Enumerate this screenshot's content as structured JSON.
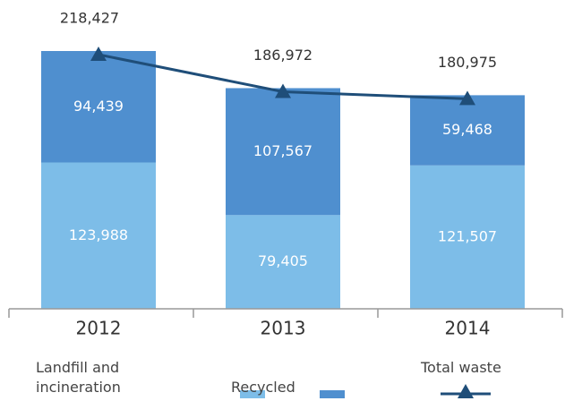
{
  "chart_data": {
    "type": "bar",
    "stacked": true,
    "legend": "bottom",
    "categories": [
      "2012",
      "2013",
      "2014"
    ],
    "series": [
      {
        "name": "Landfill and incineration",
        "color": "#7dbde8",
        "values": [
          123988,
          79405,
          121507
        ],
        "value_labels": [
          "123,988",
          "79,405",
          "121,507"
        ]
      },
      {
        "name": "Recycled",
        "color": "#4f8fcf",
        "values": [
          94439,
          107567,
          59468
        ],
        "value_labels": [
          "94,439",
          "107,567",
          "59,468"
        ]
      },
      {
        "name": "Total waste",
        "type": "line",
        "color": "#1f4e79",
        "values": [
          218427,
          186972,
          180975
        ],
        "value_labels": [
          "218,427",
          "186,972",
          "180,975"
        ]
      }
    ]
  }
}
